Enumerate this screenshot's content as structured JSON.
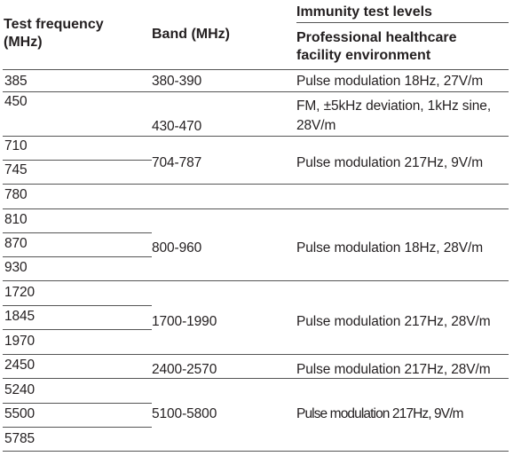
{
  "header": {
    "col_freq": "Test frequency (MHz)",
    "col_freq_line1": "Test frequency",
    "col_freq_line2": "(MHz)",
    "col_band": "Band (MHz)",
    "col_levels_group": "Immunity test levels",
    "col_levels_env_line1": "Professional healthcare",
    "col_levels_env_line2": "facility environment"
  },
  "freqs": [
    "385",
    "450",
    "710",
    "745",
    "780",
    "810",
    "870",
    "930",
    "1720",
    "1845",
    "1970",
    "2450",
    "5240",
    "5500",
    "5785"
  ],
  "bands": [
    "380-390",
    "430-470",
    "704-787",
    "800-960",
    "1700-1990",
    "2400-2570",
    "5100-5800"
  ],
  "levels": [
    "Pulse modulation 18Hz, 27V/m",
    "FM, ±5kHz deviation, 1kHz sine,",
    "28V/m",
    "Pulse modulation 217Hz, 9V/m",
    "Pulse modulation 18Hz, 28V/m",
    "Pulse modulation 217Hz, 28V/m",
    "Pulse modulation 217Hz, 28V/m",
    "Pulse modulation 217Hz, 9V/m"
  ]
}
